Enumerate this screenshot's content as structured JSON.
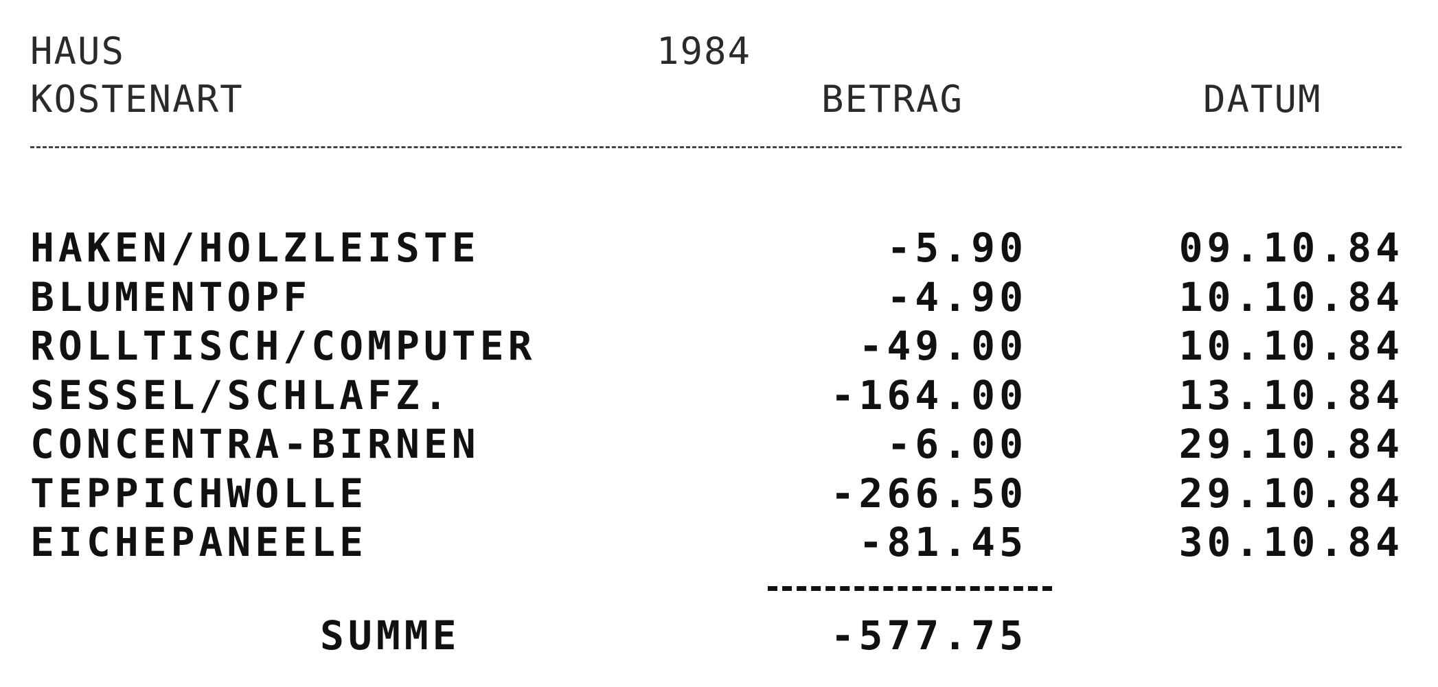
{
  "header": {
    "category": "HAUS",
    "year": "1984",
    "col_item": "KOSTENART",
    "col_amount": "BETRAG",
    "col_date": "DATUM"
  },
  "rows": [
    {
      "item": "HAKEN/HOLZLEISTE",
      "amount": "-5.90",
      "date": "09.10.84"
    },
    {
      "item": "BLUMENTOPF",
      "amount": "-4.90",
      "date": "10.10.84"
    },
    {
      "item": "ROLLTISCH/COMPUTER",
      "amount": "-49.00",
      "date": "10.10.84"
    },
    {
      "item": "SESSEL/SCHLAFZ.",
      "amount": "-164.00",
      "date": "13.10.84"
    },
    {
      "item": "CONCENTRA-BIRNEN",
      "amount": "-6.00",
      "date": "29.10.84"
    },
    {
      "item": "TEPPICHWOLLE",
      "amount": "-266.50",
      "date": "29.10.84"
    },
    {
      "item": "EICHEPANEELE",
      "amount": "-81.45",
      "date": "30.10.84"
    }
  ],
  "total": {
    "label": "SUMME",
    "value": "-577.75"
  }
}
